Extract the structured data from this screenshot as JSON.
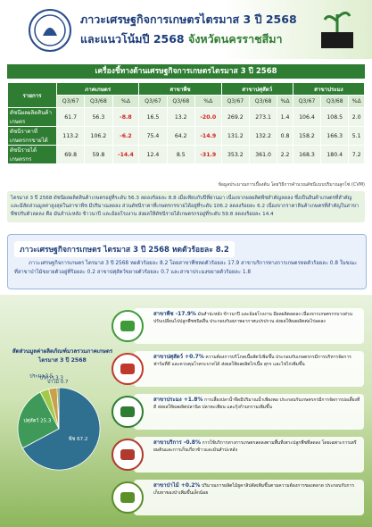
{
  "header": {
    "title": "ภาวะเศรษฐกิจการเกษตรไตรมาส 3 ปี 2568",
    "subtitle": "และแนวโน้มปี 2568",
    "province": "จังหวัดนครราชสีมา"
  },
  "table": {
    "title": "เครื่องชี้ทางด้านเศรษฐกิจการเกษตรไตรมาส 3 ปี 2568",
    "corner": "รายการ",
    "groups": [
      "ภาคเกษตร",
      "สาขาพืช",
      "สาขาปศุสัตว์",
      "สาขาประมง"
    ],
    "subheaders": [
      "Q3/67",
      "Q3/68",
      "%Δ"
    ],
    "rows": [
      {
        "label": "ดัชนีผลผลิตสินค้าเกษตร",
        "values": [
          "61.7",
          "56.3",
          "-8.8",
          "16.5",
          "13.2",
          "-20.0",
          "269.2",
          "273.1",
          "1.4",
          "106.4",
          "108.5",
          "2.0"
        ]
      },
      {
        "label": "ดัชนีราคาที่เกษตรกรขายได้",
        "values": [
          "113.2",
          "106.2",
          "-6.2",
          "75.4",
          "64.2",
          "-14.9",
          "131.2",
          "132.2",
          "0.8",
          "158.2",
          "166.3",
          "5.1"
        ]
      },
      {
        "label": "ดัชนีรายได้เกษตรกร",
        "values": [
          "69.8",
          "59.8",
          "-14.4",
          "12.4",
          "8.5",
          "-31.9",
          "353.2",
          "361.0",
          "2.2",
          "168.3",
          "180.4",
          "7.2"
        ]
      }
    ],
    "note": "ข้อมูลประมาณการเบื้องต้น โดยวิธีการคำนวณดัชนีแบบปริมาณลูกโซ่ (CVM)"
  },
  "summary": "ไตรมาส 3 ปี 2568 ดัชนีผลผลิตสินค้าเกษตรอยู่ที่ระดับ 56.3 ลดลงร้อยละ 8.8 เมื่อเทียบกับปีที่ผ่านมา เนื่องจากผลผลิตพืชสำคัญลดลง ซึ่งเป็นสินค้าเกษตรที่สำคัญ และมีสัดส่วนมูลค่าสูงสุดในสาขาพืช มีปริมาณลดลง ส่วนดัชนีราคาที่เกษตรกรขายได้อยู่ที่ระดับ 106.2 ลดลงร้อยละ 6.2 เนื่องจากราคาสินค้าเกษตรที่สำคัญในสาขาพืชปรับตัวลดลง คือ มันสำปะหลัง ข้าวนาปี และอ้อยโรงงาน ส่งผลให้ดัชนีรายได้เกษตรกรอยู่ที่ระดับ 59.8 ลดลงร้อยละ 14.4",
  "highlight": {
    "title": "ภาวะเศรษฐกิจการเกษตร ไตรมาส 3 ปี 2568 หดตัวร้อยละ 8.2",
    "text": "ภาวะเศรษฐกิจการเกษตร ไตรมาส 3 ปี 2568 หดตัวร้อยละ 8.2 โดยสาขาพืชหดตัวร้อยละ 17.9 สาขาบริการทางการเกษตรหดตัวร้อยละ 0.8 ในขณะที่สาขาป่าไม้ขยายตัวอยู่ที่ร้อยละ 0.2 สาขาปศุสัตว์ขยายตัวร้อยละ 0.7 และสาขาประมงขยายตัวร้อยละ 1.8"
  },
  "pie_chart": {
    "type": "pie",
    "title": "สัดส่วนมูลค่าผลิตภัณฑ์มวลรวมภาคเกษตร ไตรมาส 3 ปี 2568",
    "categories": [
      "พืช",
      "ปศุสัตว์",
      "ประมง",
      "บริการ",
      "ป่าไม้"
    ],
    "values": [
      67.2,
      25.3,
      3.5,
      3.3,
      0.7
    ],
    "colors": [
      "#2f6f8f",
      "#3f9a5a",
      "#a3c94a",
      "#c9a14a",
      "#5b8c2a"
    ]
  },
  "sectors": [
    {
      "title": "สาขาพืช -17.9%",
      "text": "มันสำปะหลัง ข้าวนาปี และอ้อยโรงงาน มีผลผลิตลดลง เนื่องจากเกษตรกรบางส่วนปรับเปลี่ยนไปปลูกพืชชนิดอื่น ประกอบกับสภาพอากาศแปรปรวน ส่งผลให้ผลผลิตต่อไร่ลดลง"
    },
    {
      "title": "สาขาปศุสัตว์ +0.7%",
      "text": "ความต้องการบริโภคเนื้อสัตว์เพิ่มขึ้น ประกอบกับเกษตรกรมีการบริหารจัดการฟาร์มที่ดี และควบคุมโรคระบาดได้ ส่งผลให้ผลผลิตไก่เนื้อ สุกร และไข่ไก่เพิ่มขึ้น"
    },
    {
      "title": "สาขาประมง +1.8%",
      "text": "การเลี้ยงปลาน้ำจืดมีปริมาณน้ำเพียงพอ ประกอบกับเกษตรกรมีการจัดการบ่อเลี้ยงที่ดี ส่งผลให้ผลผลิตปลานิล ปลาตะเพียน และกุ้งก้ามกรามเพิ่มขึ้น"
    },
    {
      "title": "สาขาบริการ -0.8%",
      "text": "การใช้บริการทางการเกษตรลดลงตามพื้นที่เพาะปลูกพืชที่ลดลง โดยเฉพาะการเตรียมดินและการเก็บเกี่ยวข้าวและมันสำปะหลัง"
    },
    {
      "title": "สาขาป่าไม้ +0.2%",
      "text": "ปริมาณการผลิตไม้ยูคาลิปตัสเพิ่มขึ้นตามความต้องการของตลาด ประกอบกับการเก็บหาของป่าเพิ่มขึ้นเล็กน้อย"
    }
  ]
}
